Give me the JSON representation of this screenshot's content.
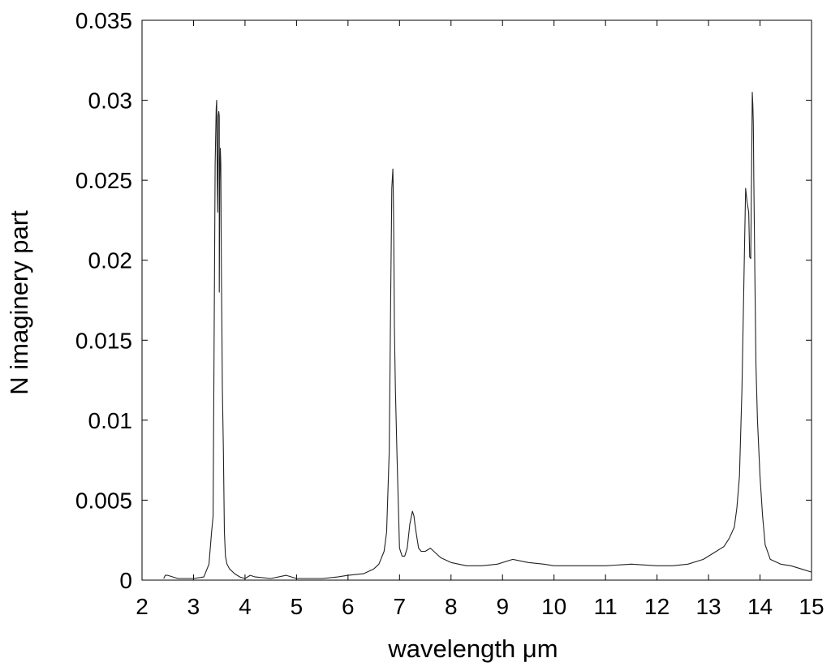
{
  "chart_data": {
    "type": "line",
    "title": "",
    "xlabel": "wavelength μm",
    "ylabel": "N imaginery part",
    "xlim": [
      2,
      15
    ],
    "ylim": [
      0,
      0.035
    ],
    "x_ticks": [
      2,
      3,
      4,
      5,
      6,
      7,
      8,
      9,
      10,
      11,
      12,
      13,
      14,
      15
    ],
    "x_tick_labels": [
      "2",
      "3",
      "4",
      "5",
      "6",
      "7",
      "8",
      "9",
      "10",
      "11",
      "12",
      "13",
      "14",
      "15"
    ],
    "y_ticks": [
      0,
      0.005,
      0.01,
      0.015,
      0.02,
      0.025,
      0.03,
      0.035
    ],
    "y_tick_labels": [
      "0",
      "0.005",
      "0.01",
      "0.015",
      "0.02",
      "0.025",
      "0.03",
      "0.035"
    ],
    "grid": false,
    "legend": "none",
    "line_color": "#222222",
    "series": [
      {
        "x": [
          2.42,
          2.45,
          2.5,
          2.6,
          2.7,
          3.0,
          3.2,
          3.3,
          3.35,
          3.38,
          3.42,
          3.44,
          3.45,
          3.46,
          3.47,
          3.48,
          3.49,
          3.5,
          3.5,
          3.51,
          3.52,
          3.53,
          3.54,
          3.55,
          3.56,
          3.58,
          3.6,
          3.62,
          3.65,
          3.7,
          3.8,
          3.9,
          4.0,
          4.1,
          4.2,
          4.5,
          4.8,
          5.0,
          5.5,
          5.8,
          6.0,
          6.3,
          6.5,
          6.6,
          6.7,
          6.75,
          6.8,
          6.83,
          6.85,
          6.87,
          6.88,
          6.89,
          6.9,
          6.92,
          6.95,
          7.0,
          7.05,
          7.1,
          7.15,
          7.2,
          7.25,
          7.28,
          7.3,
          7.33,
          7.37,
          7.42,
          7.5,
          7.6,
          7.7,
          7.8,
          8.0,
          8.3,
          8.6,
          8.9,
          9.2,
          9.5,
          9.8,
          10.0,
          11.0,
          11.5,
          12.0,
          12.3,
          12.6,
          12.9,
          13.1,
          13.3,
          13.4,
          13.5,
          13.55,
          13.6,
          13.65,
          13.7,
          13.72,
          13.75,
          13.78,
          13.8,
          13.82,
          13.84,
          13.85,
          13.86,
          13.87,
          13.88,
          13.9,
          13.92,
          13.95,
          14.0,
          14.05,
          14.1,
          14.2,
          14.4,
          14.6,
          14.8,
          15.0
        ],
        "y": [
          0.0001,
          0.0003,
          0.0003,
          0.0002,
          0.0001,
          0.0001,
          0.0002,
          0.001,
          0.003,
          0.004,
          0.026,
          0.0295,
          0.03,
          0.025,
          0.023,
          0.029,
          0.0293,
          0.029,
          0.018,
          0.025,
          0.027,
          0.026,
          0.02,
          0.016,
          0.012,
          0.008,
          0.003,
          0.0015,
          0.001,
          0.0007,
          0.0004,
          0.0002,
          0.0001,
          0.0003,
          0.0002,
          0.0001,
          0.0003,
          0.0001,
          0.0001,
          0.0002,
          0.0003,
          0.0004,
          0.0007,
          0.001,
          0.0018,
          0.003,
          0.008,
          0.018,
          0.0245,
          0.0257,
          0.024,
          0.021,
          0.0158,
          0.012,
          0.008,
          0.002,
          0.0015,
          0.0015,
          0.002,
          0.0035,
          0.0043,
          0.004,
          0.0035,
          0.0028,
          0.002,
          0.0018,
          0.0018,
          0.002,
          0.0017,
          0.0014,
          0.0011,
          0.0009,
          0.0009,
          0.001,
          0.0013,
          0.0011,
          0.001,
          0.0009,
          0.0009,
          0.001,
          0.0009,
          0.0009,
          0.001,
          0.0013,
          0.0017,
          0.0021,
          0.0026,
          0.0033,
          0.0045,
          0.0065,
          0.012,
          0.021,
          0.0245,
          0.0236,
          0.023,
          0.0202,
          0.0201,
          0.027,
          0.0305,
          0.0297,
          0.0285,
          0.025,
          0.019,
          0.0135,
          0.01,
          0.0065,
          0.004,
          0.0022,
          0.0013,
          0.001,
          0.0009,
          0.0007,
          0.0005
        ]
      }
    ]
  }
}
